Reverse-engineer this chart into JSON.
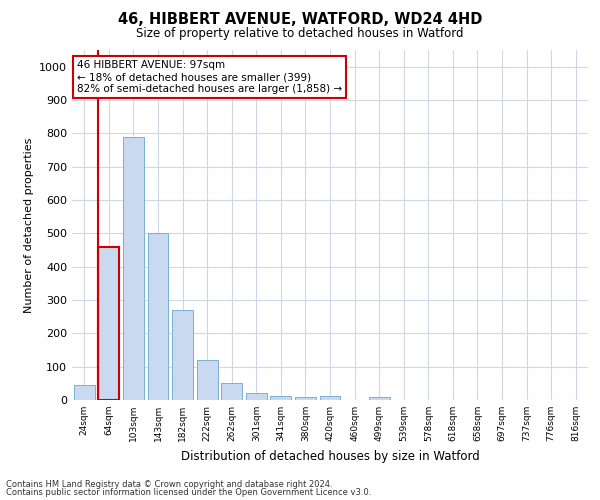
{
  "title_line1": "46, HIBBERT AVENUE, WATFORD, WD24 4HD",
  "title_line2": "Size of property relative to detached houses in Watford",
  "xlabel": "Distribution of detached houses by size in Watford",
  "ylabel": "Number of detached properties",
  "footnote1": "Contains HM Land Registry data © Crown copyright and database right 2024.",
  "footnote2": "Contains public sector information licensed under the Open Government Licence v3.0.",
  "categories": [
    "24sqm",
    "64sqm",
    "103sqm",
    "143sqm",
    "182sqm",
    "222sqm",
    "262sqm",
    "301sqm",
    "341sqm",
    "380sqm",
    "420sqm",
    "460sqm",
    "499sqm",
    "539sqm",
    "578sqm",
    "618sqm",
    "658sqm",
    "697sqm",
    "737sqm",
    "776sqm",
    "816sqm"
  ],
  "values": [
    45,
    460,
    790,
    500,
    270,
    120,
    50,
    20,
    12,
    10,
    12,
    0,
    8,
    0,
    0,
    0,
    0,
    0,
    0,
    0,
    0
  ],
  "bar_color": "#c9d9f0",
  "bar_edge_color": "#7bafd4",
  "highlight_bar_index": 1,
  "highlight_bar_edge_color": "#cc0000",
  "annotation_text_line1": "46 HIBBERT AVENUE: 97sqm",
  "annotation_text_line2": "← 18% of detached houses are smaller (399)",
  "annotation_text_line3": "82% of semi-detached houses are larger (1,858) →",
  "annotation_box_facecolor": "#ffffff",
  "annotation_box_edgecolor": "#cc0000",
  "vline_color": "#cc0000",
  "ylim": [
    0,
    1050
  ],
  "yticks": [
    0,
    100,
    200,
    300,
    400,
    500,
    600,
    700,
    800,
    900,
    1000
  ],
  "grid_color": "#d0d8e8",
  "background_color": "#ffffff",
  "figsize": [
    6.0,
    5.0
  ],
  "dpi": 100
}
